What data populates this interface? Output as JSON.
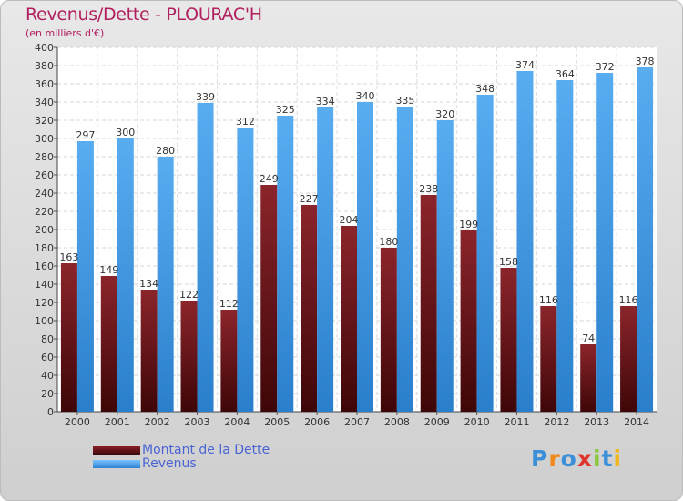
{
  "header": {
    "title": "Revenus/Dette - PLOURAC'H",
    "subtitle": "(en milliers d'€)"
  },
  "legend": {
    "debt_label": "Montant de la Dette",
    "revenue_label": "Revenus"
  },
  "logo": {
    "letters": [
      "P",
      "r",
      "o",
      "x",
      "i",
      "t",
      "i"
    ],
    "colors": [
      "#3a8fd8",
      "#f08a1e",
      "#3a8fd8",
      "#e0332b",
      "#8dc63f",
      "#3a8fd8",
      "#f0b81e"
    ]
  },
  "colors": {
    "debt": "#6b1418",
    "revenue": "#3d97e0",
    "title": "#b21f5f",
    "legend_text": "#4a63d4"
  },
  "chart_data": {
    "type": "bar",
    "title": "Revenus/Dette - PLOURAC'H",
    "subtitle": "(en milliers d'€)",
    "categories": [
      "2000",
      "2001",
      "2002",
      "2003",
      "2004",
      "2005",
      "2006",
      "2007",
      "2008",
      "2009",
      "2010",
      "2011",
      "2012",
      "2013",
      "2014"
    ],
    "series": [
      {
        "name": "Montant de la Dette",
        "values": [
          163,
          149,
          134,
          122,
          112,
          249,
          227,
          204,
          180,
          238,
          199,
          158,
          116,
          74,
          116
        ]
      },
      {
        "name": "Revenus",
        "values": [
          297,
          300,
          280,
          339,
          312,
          325,
          334,
          340,
          335,
          320,
          348,
          374,
          364,
          372,
          378
        ]
      }
    ],
    "ylim": [
      0,
      400
    ],
    "yticks": [
      0,
      20,
      40,
      60,
      80,
      100,
      120,
      140,
      160,
      180,
      200,
      220,
      240,
      260,
      280,
      300,
      320,
      340,
      360,
      380,
      400
    ],
    "grid": true,
    "legend_position": "bottom-left"
  }
}
